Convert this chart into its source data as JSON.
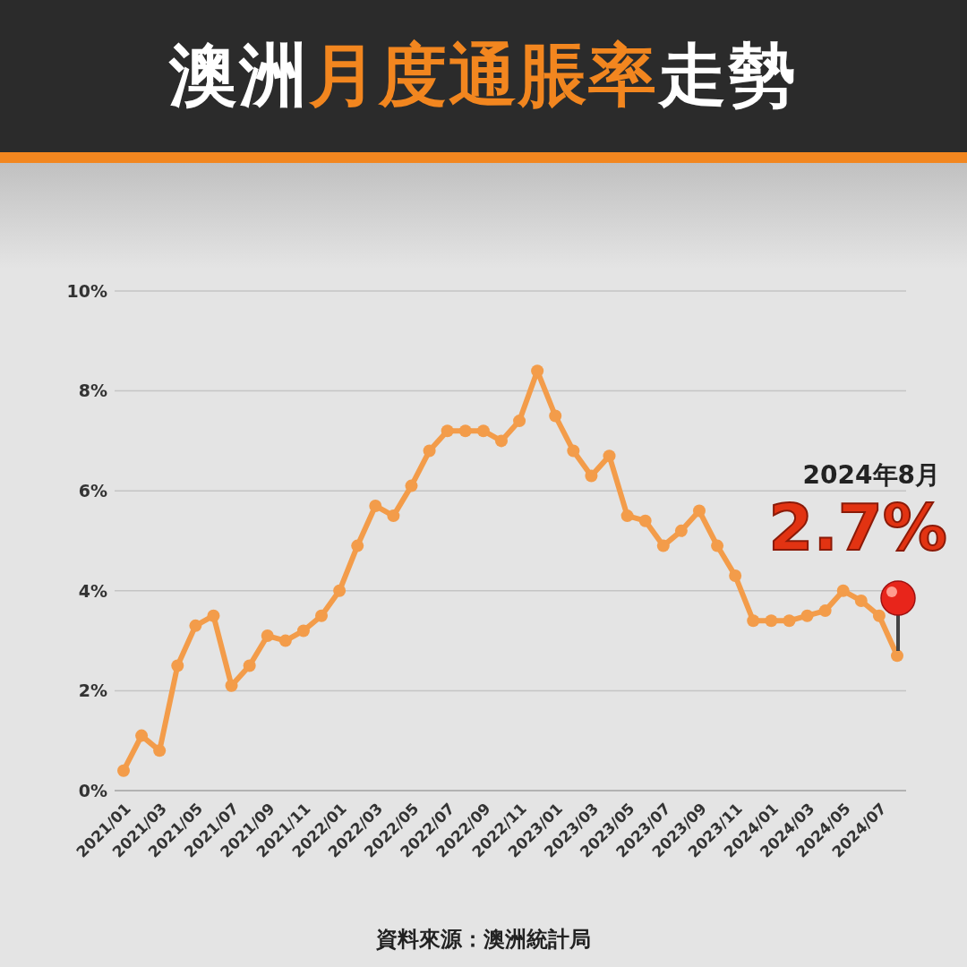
{
  "chart_data": {
    "type": "line",
    "title": "澳洲月度通脹率走勢",
    "categories": [
      "2021/01",
      null,
      "2021/03",
      null,
      "2021/05",
      null,
      "2021/07",
      null,
      "2021/09",
      null,
      "2021/11",
      null,
      "2022/01",
      null,
      "2022/03",
      null,
      "2022/05",
      null,
      "2022/07",
      null,
      "2022/09",
      null,
      "2022/11",
      null,
      "2023/01",
      null,
      "2023/03",
      null,
      "2023/05",
      null,
      "2023/07",
      null,
      "2023/09",
      null,
      "2023/11",
      null,
      "2024/01",
      null,
      "2024/03",
      null,
      "2024/05",
      null,
      "2024/07",
      null
    ],
    "series": [
      {
        "color": "#f39c4a",
        "values": [
          0.4,
          1.1,
          0.8,
          2.5,
          3.3,
          3.5,
          2.1,
          2.5,
          3.1,
          3.0,
          3.2,
          3.5,
          4.0,
          4.9,
          5.7,
          5.5,
          6.1,
          6.8,
          7.2,
          7.2,
          7.2,
          7.0,
          7.4,
          8.4,
          7.5,
          6.8,
          6.3,
          6.7,
          5.5,
          5.4,
          4.9,
          5.2,
          5.6,
          4.9,
          4.3,
          3.4,
          3.4,
          3.4,
          3.5,
          3.6,
          4.0,
          3.8,
          3.5,
          2.7
        ]
      }
    ],
    "ylim": [
      0,
      10
    ],
    "yticks": [
      {
        "value": 0,
        "label": "0%"
      },
      {
        "value": 2,
        "label": "2%"
      },
      {
        "value": 4,
        "label": "4%"
      },
      {
        "value": 6,
        "label": "6%"
      },
      {
        "value": 8,
        "label": "8%"
      },
      {
        "value": 10,
        "label": "10%"
      }
    ],
    "grid": "y",
    "marker": "circle",
    "line_style": "solid",
    "legend": false,
    "annotations": [
      "2024年8月",
      "2.7%",
      "資料來源：澳洲統計局"
    ]
  }
}
